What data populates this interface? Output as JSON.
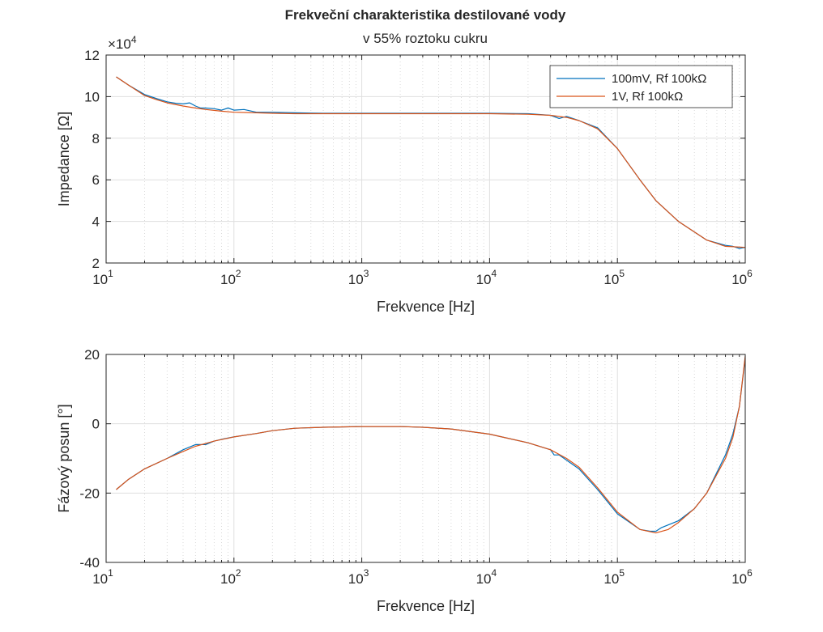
{
  "figure_title": "Frekveční charakteristika destilované vody",
  "figure_subtitle": "v 55% roztoku cukru",
  "legend": [
    "100mV, Rf 100kΩ",
    "1V, Rf 100kΩ"
  ],
  "colors": {
    "series1": "#0072BD",
    "series2": "#D95319",
    "grid": "#dfdfdf",
    "axis": "#262626"
  },
  "chart_data": [
    {
      "type": "line",
      "xscale": "log",
      "xlim": [
        10,
        1000000
      ],
      "ylim": [
        2,
        12
      ],
      "exponent_label": "×10",
      "exponent_power": "4",
      "xlabel": "Frekvence [Hz]",
      "ylabel": "Impedance [Ω]",
      "xticks": [
        {
          "base": "10",
          "exp": "1"
        },
        {
          "base": "10",
          "exp": "2"
        },
        {
          "base": "10",
          "exp": "3"
        },
        {
          "base": "10",
          "exp": "4"
        },
        {
          "base": "10",
          "exp": "5"
        },
        {
          "base": "10",
          "exp": "6"
        }
      ],
      "yticks": [
        "2",
        "4",
        "6",
        "8",
        "10",
        "12"
      ],
      "ytick_values": [
        2,
        4,
        6,
        8,
        10,
        12
      ],
      "grid": true,
      "legend_position": "top-right",
      "series": [
        {
          "name": "100mV, Rf 100kΩ",
          "x": [
            12,
            15,
            20,
            25,
            30,
            35,
            40,
            45,
            50,
            55,
            60,
            70,
            80,
            90,
            100,
            120,
            150,
            200,
            300,
            500,
            700,
            1000,
            2000,
            3000,
            5000,
            10000,
            20000,
            30000,
            35000,
            40000,
            50000,
            70000,
            100000,
            150000,
            200000,
            300000,
            500000,
            700000,
            800000,
            900000,
            1000000
          ],
          "y": [
            10.95,
            10.55,
            10.1,
            9.9,
            9.75,
            9.68,
            9.65,
            9.7,
            9.55,
            9.45,
            9.45,
            9.42,
            9.35,
            9.45,
            9.35,
            9.38,
            9.25,
            9.25,
            9.22,
            9.2,
            9.2,
            9.2,
            9.2,
            9.2,
            9.2,
            9.2,
            9.18,
            9.1,
            8.95,
            9.05,
            8.85,
            8.5,
            7.5,
            6.0,
            5.0,
            4.0,
            3.1,
            2.85,
            2.8,
            2.7,
            2.75
          ]
        },
        {
          "name": "1V, Rf 100kΩ",
          "x": [
            12,
            15,
            20,
            25,
            30,
            40,
            50,
            60,
            80,
            100,
            150,
            200,
            300,
            500,
            1000,
            2000,
            5000,
            10000,
            20000,
            30000,
            40000,
            50000,
            70000,
            100000,
            150000,
            200000,
            300000,
            500000,
            700000,
            1000000
          ],
          "y": [
            10.95,
            10.55,
            10.05,
            9.85,
            9.7,
            9.55,
            9.45,
            9.38,
            9.3,
            9.25,
            9.22,
            9.2,
            9.18,
            9.18,
            9.18,
            9.18,
            9.18,
            9.18,
            9.15,
            9.1,
            9.0,
            8.85,
            8.45,
            7.5,
            6.0,
            5.0,
            4.0,
            3.1,
            2.8,
            2.75
          ]
        }
      ]
    },
    {
      "type": "line",
      "xscale": "log",
      "xlim": [
        10,
        1000000
      ],
      "ylim": [
        -40,
        20
      ],
      "xlabel": "Frekvence [Hz]",
      "ylabel": "Fázový posun [°]",
      "xticks": [
        {
          "base": "10",
          "exp": "1"
        },
        {
          "base": "10",
          "exp": "2"
        },
        {
          "base": "10",
          "exp": "3"
        },
        {
          "base": "10",
          "exp": "4"
        },
        {
          "base": "10",
          "exp": "5"
        },
        {
          "base": "10",
          "exp": "6"
        }
      ],
      "yticks": [
        "-40",
        "-20",
        "0",
        "20"
      ],
      "ytick_values": [
        -40,
        -20,
        0,
        20
      ],
      "grid": true,
      "series": [
        {
          "name": "100mV, Rf 100kΩ",
          "x": [
            12,
            15,
            20,
            30,
            40,
            50,
            60,
            70,
            80,
            100,
            150,
            200,
            300,
            500,
            1000,
            2000,
            3000,
            5000,
            10000,
            20000,
            30000,
            32000,
            35000,
            40000,
            50000,
            70000,
            100000,
            150000,
            180000,
            200000,
            220000,
            300000,
            400000,
            500000,
            700000,
            800000,
            900000,
            1000000
          ],
          "y": [
            -19,
            -16,
            -13,
            -10,
            -7.5,
            -6,
            -6,
            -5,
            -4.5,
            -3.8,
            -2.8,
            -2,
            -1.3,
            -1,
            -0.8,
            -0.8,
            -1,
            -1.5,
            -3,
            -5.5,
            -7.5,
            -9,
            -9,
            -10.5,
            -13,
            -19,
            -26,
            -30.5,
            -31,
            -31,
            -30,
            -28,
            -24.5,
            -20,
            -9,
            -3,
            5,
            19
          ]
        },
        {
          "name": "1V, Rf 100kΩ",
          "x": [
            12,
            15,
            20,
            30,
            40,
            50,
            70,
            100,
            150,
            200,
            300,
            500,
            1000,
            2000,
            3000,
            5000,
            10000,
            20000,
            30000,
            40000,
            50000,
            70000,
            100000,
            150000,
            200000,
            250000,
            300000,
            400000,
            500000,
            700000,
            800000,
            900000,
            1000000
          ],
          "y": [
            -19,
            -16,
            -13,
            -10,
            -8,
            -6.5,
            -5,
            -3.8,
            -2.8,
            -2,
            -1.3,
            -1,
            -0.8,
            -0.8,
            -1,
            -1.5,
            -3,
            -5.5,
            -7.5,
            -10,
            -12.5,
            -18.5,
            -25.5,
            -30.5,
            -31.5,
            -30.5,
            -28.5,
            -24.5,
            -20,
            -10,
            -4,
            5,
            19.5
          ]
        }
      ]
    }
  ]
}
